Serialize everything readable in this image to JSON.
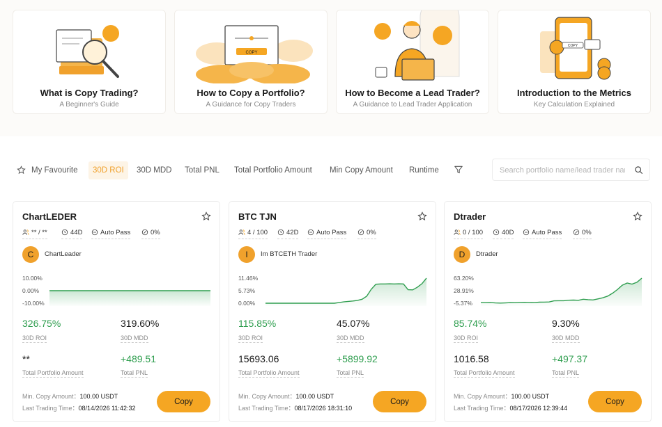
{
  "guides": [
    {
      "title": "What is Copy Trading?",
      "subtitle": "A Beginner's Guide"
    },
    {
      "title": "How to Copy a Portfolio?",
      "subtitle": "A Guidance for Copy Traders",
      "illustration_label": "COPY"
    },
    {
      "title": "How to Become a Lead Trader?",
      "subtitle": "A Guidance to Lead Trader Application"
    },
    {
      "title": "Introduction to the Metrics",
      "subtitle": "Key Calculation Explained",
      "illustration_label": "COPY"
    }
  ],
  "filters": {
    "favourite": "My Favourite",
    "tabs": [
      "30D ROI",
      "30D MDD",
      "Total PNL",
      "Total Portfolio Amount",
      "Min Copy Amount",
      "Runtime"
    ],
    "active_tab": "30D ROI",
    "search_placeholder": "Search portfolio name/lead trader name"
  },
  "colors": {
    "accent": "#f5a623",
    "positive": "#2f9e4f"
  },
  "labels": {
    "roi": "30D ROI",
    "mdd": "30D MDD",
    "portfolio": "Total Portfolio Amount",
    "pnl": "Total PNL",
    "min_copy": "Min. Copy Amount：",
    "last_trading": "Last Trading Time：",
    "copy_button": "Copy"
  },
  "cards": [
    {
      "name": "ChartLEDER",
      "copiers": "** / **",
      "days": "44D",
      "auto_pass": "Auto Pass",
      "profit_share": "0%",
      "avatar_letter": "C",
      "leader": "ChartLeader",
      "y_ticks": [
        "10.00%",
        "0.00%",
        "-10.00%"
      ],
      "roi": "326.75%",
      "mdd": "319.60%",
      "portfolio": "**",
      "pnl": "+489.51",
      "min_copy": "100.00 USDT",
      "last_trading": "08/14/2026 11:42:32"
    },
    {
      "name": "BTC TJN",
      "copiers": "4 / 100",
      "days": "42D",
      "auto_pass": "Auto Pass",
      "profit_share": "0%",
      "avatar_letter": "I",
      "leader": "Im BTCETH Trader",
      "y_ticks": [
        "11.46%",
        "5.73%",
        "0.00%"
      ],
      "roi": "115.85%",
      "mdd": "45.07%",
      "portfolio": "15693.06",
      "pnl": "+5899.92",
      "min_copy": "100.00 USDT",
      "last_trading": "08/17/2026 18:31:10"
    },
    {
      "name": "Dtrader",
      "copiers": "0 / 100",
      "days": "40D",
      "auto_pass": "Auto Pass",
      "profit_share": "0%",
      "avatar_letter": "D",
      "leader": "Dtrader",
      "y_ticks": [
        "63.20%",
        "28.91%",
        "-5.37%"
      ],
      "roi": "85.74%",
      "mdd": "9.30%",
      "portfolio": "1016.58",
      "pnl": "+497.37",
      "min_copy": "100.00 USDT",
      "last_trading": "08/17/2026 12:39:44"
    }
  ],
  "chart_data": [
    {
      "type": "area",
      "ylim": [
        -10,
        10
      ],
      "y_ticks": [
        10,
        0,
        -10
      ],
      "series": [
        {
          "values": [
            0,
            0,
            0,
            0,
            0,
            0,
            0,
            0,
            0,
            0,
            0,
            0,
            0,
            0,
            0,
            0,
            0,
            0,
            0,
            0,
            0,
            0,
            0,
            0,
            0,
            0,
            0,
            0,
            0,
            0
          ]
        }
      ]
    },
    {
      "type": "area",
      "ylim": [
        0,
        11.46
      ],
      "y_ticks": [
        11.46,
        5.73,
        0
      ],
      "series": [
        {
          "values": [
            0,
            0,
            0,
            0,
            0,
            0,
            0,
            0,
            0,
            0,
            0,
            0,
            0,
            0,
            0,
            0,
            0.3,
            0.6,
            0.8,
            1.0,
            1.3,
            1.8,
            3.2,
            6.4,
            8.7,
            8.8,
            8.8,
            8.9,
            8.8,
            8.9,
            8.8,
            6.2,
            6.1,
            7.3,
            8.9,
            11.46
          ]
        }
      ]
    },
    {
      "type": "area",
      "ylim": [
        -5.37,
        63.2
      ],
      "y_ticks": [
        63.2,
        28.91,
        -5.37
      ],
      "series": [
        {
          "values": [
            -3.5,
            -3.8,
            -3.6,
            -4.6,
            -5.0,
            -4.5,
            -3.8,
            -4.0,
            -3.2,
            -2.8,
            -3.4,
            -3.6,
            -2.5,
            -2.4,
            -2.0,
            1.2,
            1.5,
            1.4,
            2.8,
            3.2,
            2.6,
            5.5,
            4.2,
            3.5,
            6.5,
            9.5,
            14.0,
            22.0,
            32.0,
            44.0,
            50.0,
            47.0,
            52.0,
            63.2
          ]
        }
      ]
    }
  ]
}
